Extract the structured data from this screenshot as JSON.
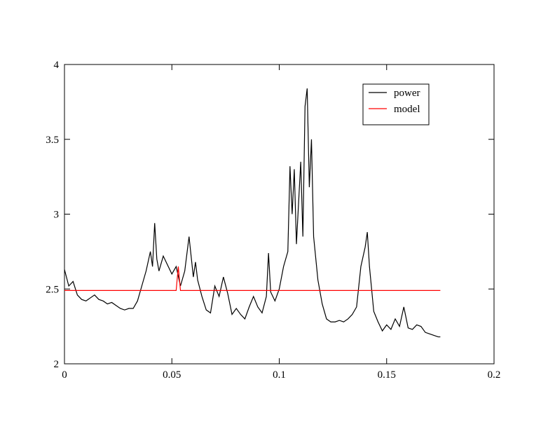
{
  "chart_data": {
    "type": "line",
    "series": [
      {
        "name": "power",
        "color": "#000000",
        "x": [
          0,
          0.002,
          0.004,
          0.006,
          0.008,
          0.01,
          0.012,
          0.014,
          0.016,
          0.018,
          0.02,
          0.022,
          0.024,
          0.026,
          0.028,
          0.03,
          0.032,
          0.034,
          0.036,
          0.038,
          0.04,
          0.041,
          0.042,
          0.043,
          0.044,
          0.046,
          0.048,
          0.05,
          0.052,
          0.054,
          0.056,
          0.058,
          0.06,
          0.061,
          0.062,
          0.064,
          0.066,
          0.068,
          0.07,
          0.072,
          0.074,
          0.076,
          0.078,
          0.08,
          0.082,
          0.084,
          0.086,
          0.088,
          0.09,
          0.092,
          0.094,
          0.095,
          0.096,
          0.098,
          0.1,
          0.102,
          0.104,
          0.105,
          0.106,
          0.107,
          0.108,
          0.11,
          0.111,
          0.112,
          0.113,
          0.114,
          0.115,
          0.116,
          0.118,
          0.12,
          0.122,
          0.124,
          0.126,
          0.128,
          0.13,
          0.132,
          0.134,
          0.136,
          0.138,
          0.14,
          0.141,
          0.142,
          0.144,
          0.146,
          0.148,
          0.15,
          0.152,
          0.154,
          0.156,
          0.158,
          0.16,
          0.162,
          0.164,
          0.166,
          0.168,
          0.17,
          0.172,
          0.174,
          0.175
        ],
        "values": [
          2.63,
          2.52,
          2.55,
          2.46,
          2.43,
          2.42,
          2.44,
          2.46,
          2.43,
          2.42,
          2.4,
          2.41,
          2.39,
          2.37,
          2.36,
          2.37,
          2.37,
          2.42,
          2.52,
          2.62,
          2.75,
          2.65,
          2.94,
          2.7,
          2.62,
          2.72,
          2.66,
          2.6,
          2.65,
          2.52,
          2.62,
          2.85,
          2.58,
          2.68,
          2.56,
          2.45,
          2.36,
          2.34,
          2.52,
          2.45,
          2.58,
          2.47,
          2.33,
          2.37,
          2.33,
          2.3,
          2.38,
          2.45,
          2.38,
          2.34,
          2.45,
          2.74,
          2.48,
          2.42,
          2.5,
          2.65,
          2.75,
          3.32,
          3.0,
          3.3,
          2.8,
          3.35,
          2.85,
          3.72,
          3.84,
          3.18,
          3.5,
          2.85,
          2.56,
          2.4,
          2.3,
          2.28,
          2.28,
          2.29,
          2.28,
          2.3,
          2.33,
          2.38,
          2.65,
          2.78,
          2.88,
          2.65,
          2.35,
          2.28,
          2.22,
          2.26,
          2.23,
          2.3,
          2.25,
          2.38,
          2.24,
          2.23,
          2.26,
          2.25,
          2.21,
          2.2,
          2.19,
          2.18,
          2.18
        ]
      },
      {
        "name": "model",
        "color": "#ff0000",
        "x": [
          0,
          0.052,
          0.053,
          0.054,
          0.175
        ],
        "values": [
          2.49,
          2.49,
          2.65,
          2.49,
          2.49
        ]
      }
    ],
    "xlim": [
      0,
      0.2
    ],
    "xticks": [
      0,
      0.05,
      0.1,
      0.15,
      0.2
    ],
    "ylim": [
      2,
      4
    ],
    "yticks": [
      2,
      2.5,
      3,
      3.5,
      4
    ],
    "legend": "upper right"
  }
}
